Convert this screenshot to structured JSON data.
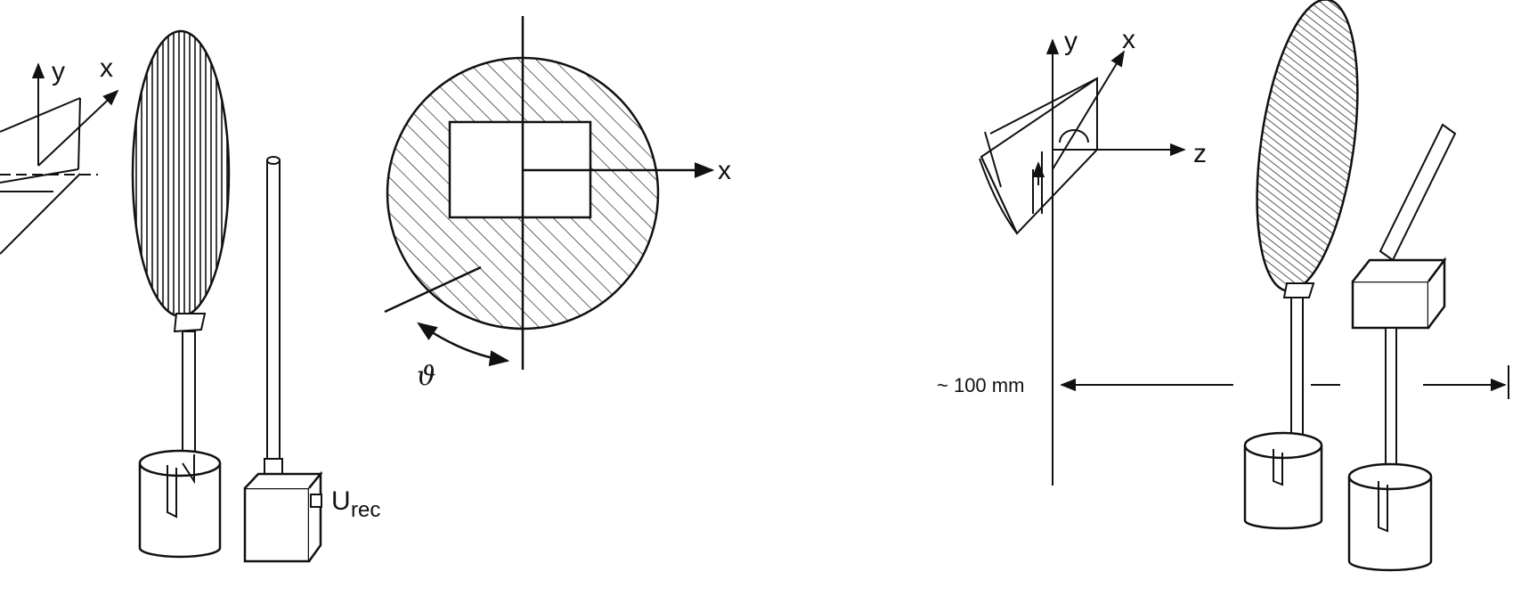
{
  "labels": {
    "left_y": "y",
    "left_x": "x",
    "disc_x": "x",
    "theta": "ϑ",
    "receiver_U": "U",
    "receiver_sub": "rec",
    "right_y": "y",
    "right_x": "x",
    "right_z": "z",
    "distance": "~ 100 mm"
  },
  "colors": {
    "line": "#111111",
    "background": "#ffffff"
  }
}
